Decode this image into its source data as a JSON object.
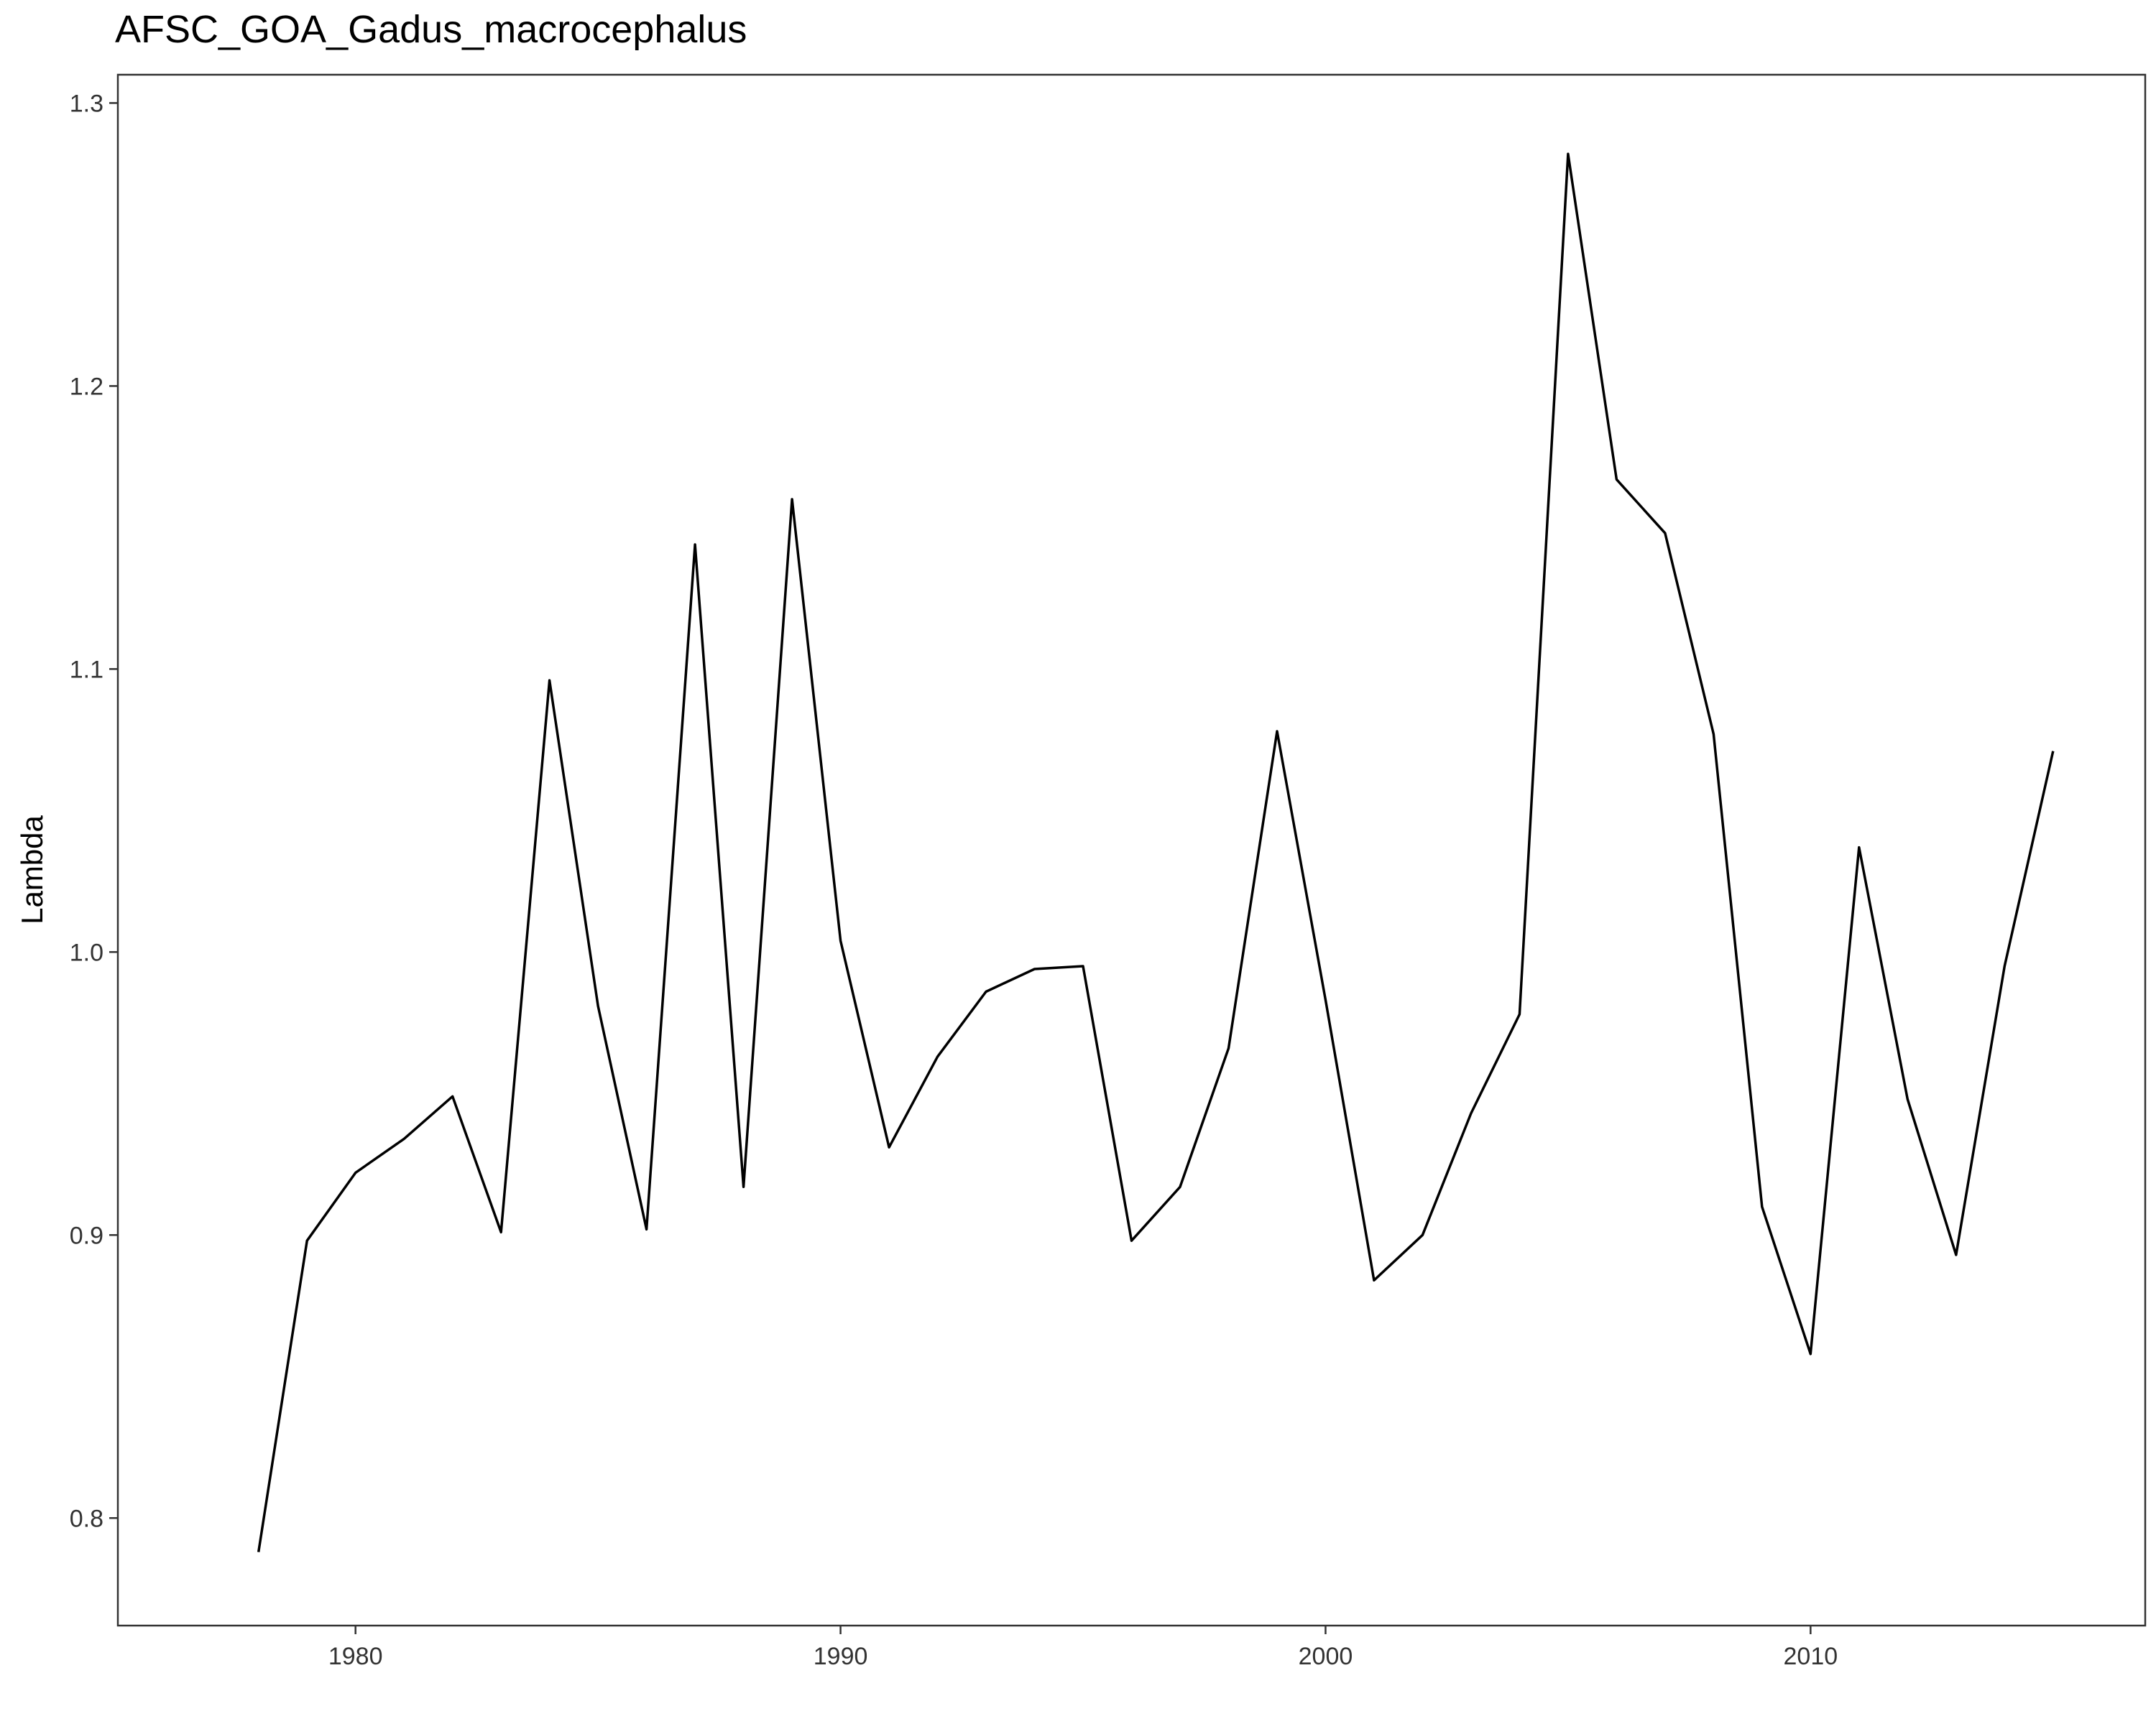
{
  "chart_data": {
    "type": "line",
    "title": "AFSC_GOA_Gadus_macrocephalus",
    "xlabel": "",
    "ylabel": "Lambda",
    "xlim": [
      1975.1,
      2016.9
    ],
    "ylim": [
      0.762,
      1.31
    ],
    "xticks": [
      1980,
      1990,
      2000,
      2010
    ],
    "yticks": [
      0.8,
      0.9,
      1.0,
      1.1,
      1.2,
      1.3
    ],
    "ytick_labels": [
      "0.8",
      "0.9",
      "1.0",
      "1.1",
      "1.2",
      "1.3"
    ],
    "grid": false,
    "legend": "none",
    "line_color": "#000000",
    "series": [
      {
        "x": [
          1978,
          1979,
          1980,
          1981,
          1982,
          1983,
          1984,
          1985,
          1986,
          1987,
          1988,
          1989,
          1990,
          1991,
          1992,
          1993,
          1994,
          1995,
          1996,
          1997,
          1998,
          1999,
          2000,
          2001,
          2002,
          2003,
          2004,
          2005,
          2006,
          2007,
          2008,
          2009,
          2010,
          2011,
          2012,
          2013,
          2014,
          2015
        ],
        "values": [
          0.788,
          0.898,
          0.922,
          0.934,
          0.949,
          0.901,
          1.096,
          0.981,
          0.902,
          1.144,
          0.917,
          1.16,
          1.004,
          0.931,
          0.963,
          0.986,
          0.994,
          0.995,
          0.898,
          0.917,
          0.966,
          1.078,
          0.983,
          0.884,
          0.9,
          0.943,
          0.978,
          1.282,
          1.167,
          1.148,
          1.077,
          0.91,
          0.858,
          1.037,
          0.948,
          0.893,
          0.995,
          1.071
        ]
      }
    ]
  }
}
